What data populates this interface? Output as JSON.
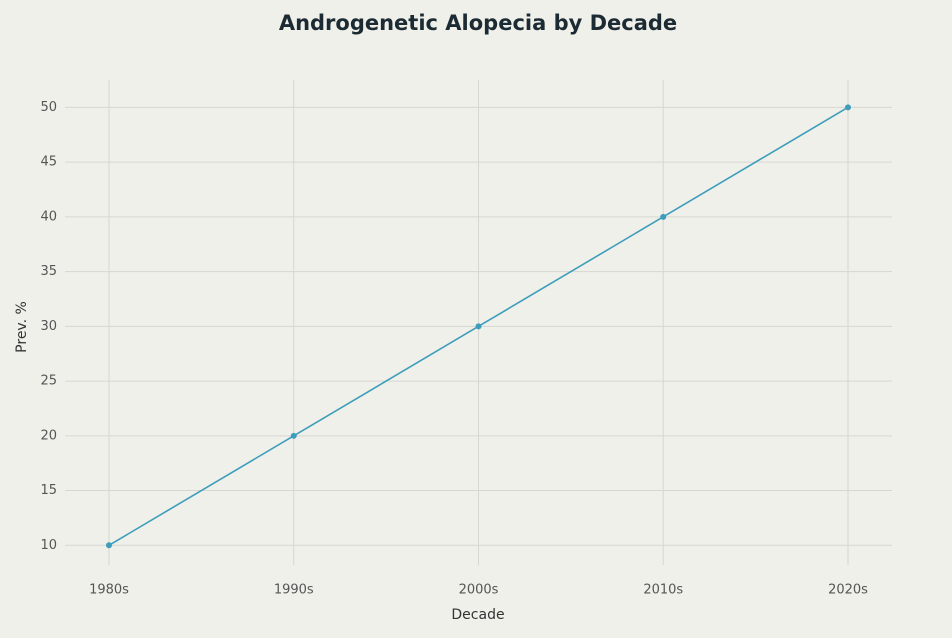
{
  "chart_data": {
    "type": "line",
    "title": "Androgenetic Alopecia by Decade",
    "x_label": "Decade",
    "y_label": "Prev. %",
    "categories": [
      "1980s",
      "1990s",
      "2000s",
      "2010s",
      "2020s"
    ],
    "values": [
      10,
      20,
      30,
      40,
      50
    ],
    "color": "#3d9dbb",
    "ylim": [
      8.2,
      52.5
    ],
    "yticks": [
      10,
      15,
      20,
      25,
      30,
      35,
      40,
      45,
      50
    ],
    "grid": true
  }
}
